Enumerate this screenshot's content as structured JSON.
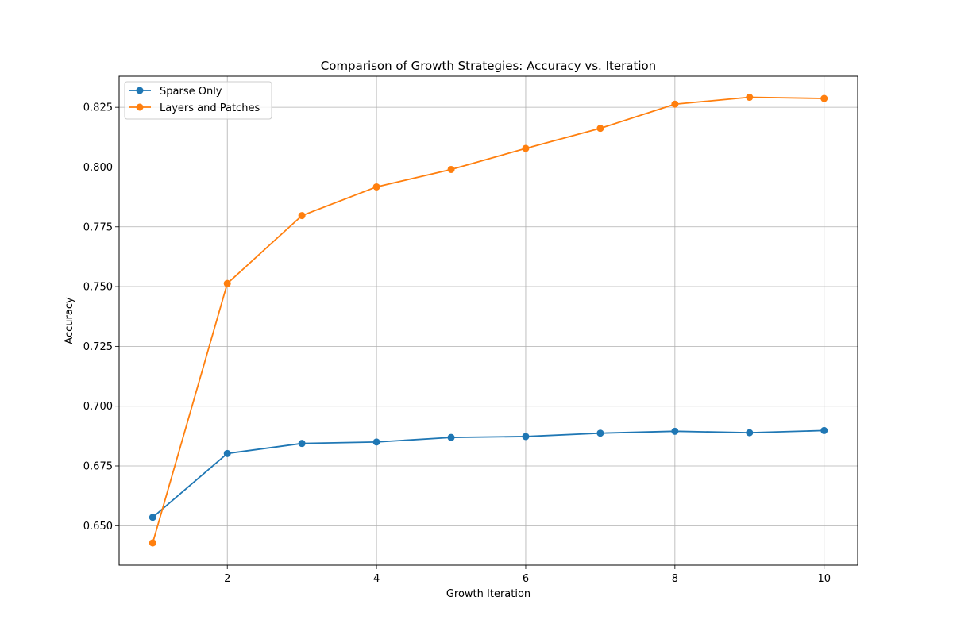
{
  "chart_data": {
    "type": "line",
    "title": "Comparison of Growth Strategies: Accuracy vs. Iteration",
    "xlabel": "Growth Iteration",
    "ylabel": "Accuracy",
    "x": [
      1,
      2,
      3,
      4,
      5,
      6,
      7,
      8,
      9,
      10
    ],
    "xlim": [
      0.55,
      10.45
    ],
    "ylim": [
      0.6335,
      0.838
    ],
    "xticks": [
      2,
      4,
      6,
      8,
      10
    ],
    "yticks": [
      0.65,
      0.675,
      0.7,
      0.725,
      0.75,
      0.775,
      0.8,
      0.825
    ],
    "xtick_labels": [
      "2",
      "4",
      "6",
      "8",
      "10"
    ],
    "ytick_labels": [
      "0.650",
      "0.675",
      "0.700",
      "0.725",
      "0.750",
      "0.775",
      "0.800",
      "0.825"
    ],
    "grid": true,
    "legend_position": "upper left",
    "markers": "circle",
    "series": [
      {
        "name": "Sparse Only",
        "color": "#1f77b4",
        "values": [
          0.6535,
          0.6802,
          0.6844,
          0.685,
          0.6869,
          0.6873,
          0.6887,
          0.6895,
          0.6889,
          0.6898
        ]
      },
      {
        "name": "Layers and Patches",
        "color": "#ff7f0e",
        "values": [
          0.6428,
          0.7513,
          0.7797,
          0.7917,
          0.799,
          0.8078,
          0.8162,
          0.8263,
          0.8292,
          0.8287
        ]
      }
    ]
  }
}
